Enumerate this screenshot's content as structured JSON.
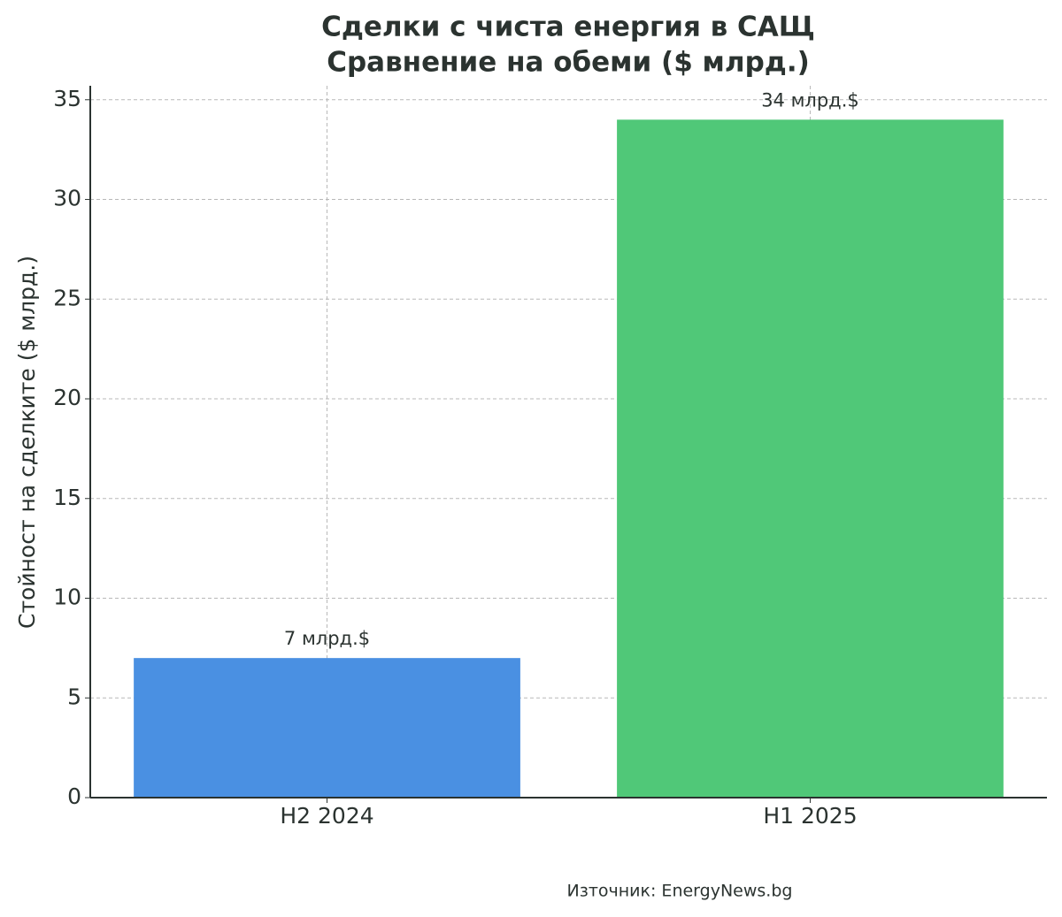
{
  "chart_data": {
    "type": "bar",
    "title": "Сделки с чиста енергия в САЩ",
    "subtitle": "Сравнение на обеми ($ млрд.)",
    "y_label": "Стойност на сделките ($ млрд.)",
    "categories": [
      "H2 2024",
      "H1 2025"
    ],
    "values": [
      7,
      34
    ],
    "value_labels": [
      "7 млрд.$",
      "34 млрд.$"
    ],
    "colors": [
      "#4a90e2",
      "#50c878"
    ],
    "ylim": [
      0,
      35.7
    ],
    "yticks": [
      0,
      5,
      10,
      15,
      20,
      25,
      30,
      35
    ],
    "grid": true,
    "source": "Източник: EnergyNews.bg"
  }
}
